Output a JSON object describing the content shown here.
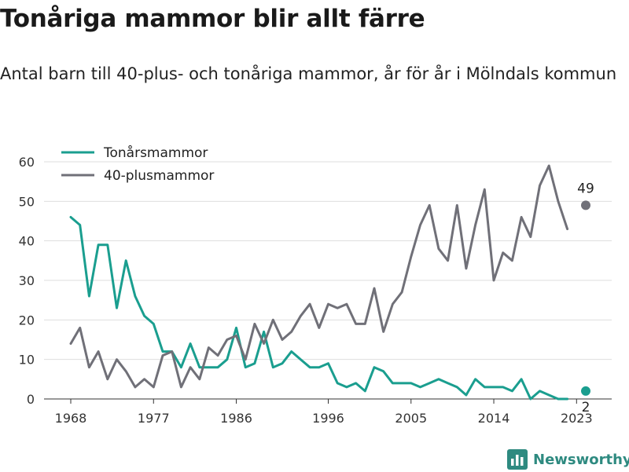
{
  "title": "Tonåriga mammor blir allt färre",
  "subtitle": "Antal barn till 40-plus- och tonåriga mammor, år för år i Mölndals kommun",
  "brand": "Newsworthy",
  "chart_data": {
    "type": "line",
    "x_ticks": [
      1968,
      1977,
      1986,
      1996,
      2005,
      2014,
      2023
    ],
    "y_ticks": [
      0,
      10,
      20,
      30,
      40,
      50,
      60
    ],
    "xlim": [
      1968,
      2024
    ],
    "ylim": [
      0,
      60
    ],
    "grid": "horizontal",
    "legend": "top-left",
    "x": [
      1968,
      1969,
      1970,
      1971,
      1972,
      1973,
      1974,
      1975,
      1976,
      1977,
      1978,
      1979,
      1980,
      1981,
      1982,
      1983,
      1984,
      1985,
      1986,
      1987,
      1988,
      1989,
      1990,
      1991,
      1992,
      1993,
      1994,
      1995,
      1996,
      1997,
      1998,
      1999,
      2000,
      2001,
      2002,
      2003,
      2004,
      2005,
      2006,
      2007,
      2008,
      2009,
      2010,
      2011,
      2012,
      2013,
      2014,
      2015,
      2016,
      2017,
      2018,
      2019,
      2020,
      2021,
      2022,
      2023,
      2024
    ],
    "series": [
      {
        "name": "Tonårsmammor",
        "color": "#1a9e8f",
        "values": [
          46,
          44,
          26,
          39,
          39,
          23,
          35,
          26,
          21,
          19,
          12,
          12,
          8,
          14,
          8,
          8,
          8,
          10,
          18,
          8,
          9,
          17,
          8,
          9,
          12,
          10,
          8,
          8,
          9,
          4,
          3,
          4,
          2,
          8,
          7,
          4,
          4,
          4,
          3,
          4,
          5,
          4,
          3,
          1,
          5,
          3,
          3,
          3,
          2,
          5,
          0,
          2,
          1,
          0,
          0,
          null,
          2
        ],
        "end_label": "2"
      },
      {
        "name": "40-plusmammor",
        "color": "#707078",
        "values": [
          14,
          18,
          8,
          12,
          5,
          10,
          7,
          3,
          5,
          3,
          11,
          12,
          3,
          8,
          5,
          13,
          11,
          15,
          16,
          10,
          19,
          14,
          20,
          15,
          17,
          21,
          24,
          18,
          24,
          23,
          24,
          19,
          19,
          28,
          17,
          24,
          27,
          36,
          44,
          49,
          38,
          35,
          49,
          33,
          44,
          53,
          30,
          37,
          35,
          46,
          41,
          54,
          59,
          50,
          43,
          null,
          49
        ],
        "end_label": "49"
      }
    ]
  }
}
